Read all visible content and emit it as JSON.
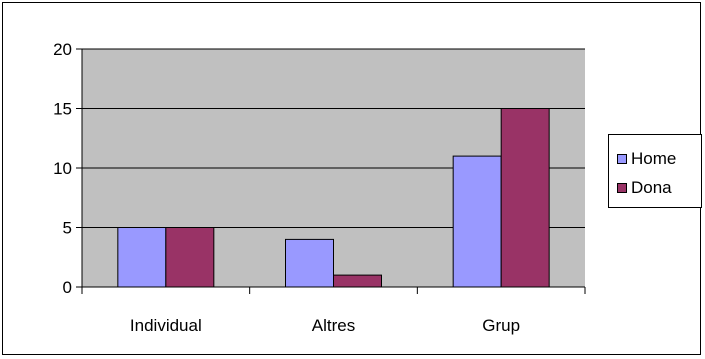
{
  "chart_data": {
    "type": "bar",
    "categories": [
      "Individual",
      "Altres",
      "Grup"
    ],
    "series": [
      {
        "name": "Home",
        "values": [
          5,
          4,
          11
        ],
        "color": "#9999FF"
      },
      {
        "name": "Dona",
        "values": [
          5,
          1,
          15
        ],
        "color": "#993366"
      }
    ],
    "ylim": [
      0,
      20
    ],
    "yticks": [
      0,
      5,
      10,
      15,
      20
    ],
    "grid": true,
    "plot_background": "#C0C0C0",
    "legend_position": "right"
  }
}
